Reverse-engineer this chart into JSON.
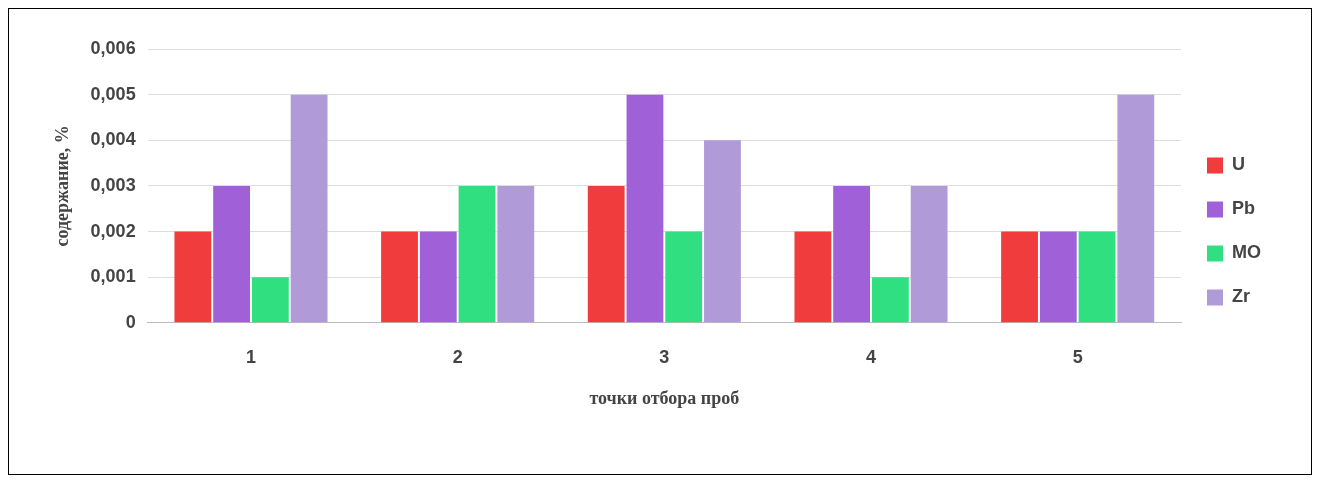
{
  "chart_data": {
    "type": "bar",
    "xlabel": "точки отбора проб",
    "ylabel": "содержание, %",
    "categories": [
      "1",
      "2",
      "3",
      "4",
      "5"
    ],
    "series": [
      {
        "name": "U",
        "color": "#f03c3c",
        "values": [
          0.002,
          0.002,
          0.003,
          0.002,
          0.002
        ]
      },
      {
        "name": "Pb",
        "color": "#a060d8",
        "values": [
          0.003,
          0.002,
          0.005,
          0.003,
          0.002
        ]
      },
      {
        "name": "MO",
        "color": "#30e080",
        "values": [
          0.001,
          0.003,
          0.002,
          0.001,
          0.002
        ]
      },
      {
        "name": "Zr",
        "color": "#b09ad8",
        "values": [
          0.005,
          0.003,
          0.004,
          0.003,
          0.005
        ]
      }
    ],
    "ylim": [
      0,
      0.006
    ],
    "yticks": [
      0,
      {
        "value": 0.001,
        "label": "0,001"
      },
      {
        "value": 0.002,
        "label": "0,002"
      },
      {
        "value": 0.003,
        "label": "0,003"
      },
      {
        "value": 0.004,
        "label": "0,004"
      },
      {
        "value": 0.005,
        "label": "0,005"
      },
      {
        "value": 0.006,
        "label": "0,006"
      }
    ],
    "grid": "y",
    "legend": "right"
  }
}
